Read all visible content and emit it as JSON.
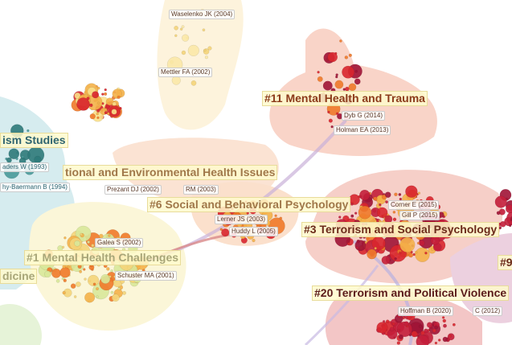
{
  "cluster_labels": {
    "c_studies": "ism Studies",
    "c_env": "tional and Environmental Health Issues",
    "c6": "#6 Social and Behavioral Psychology",
    "c11": "#11 Mental Health and Trauma",
    "c3": "#3 Terrorism and Social Psychology",
    "c1": "#1 Mental Health Challenges",
    "c_medicine": "dicine",
    "c20": "#20 Terrorism and Political Violence",
    "c9": "#9"
  },
  "reference_labels": {
    "waselenko": "Waselenko JK (2004)",
    "mettler": "Mettler FA (2002)",
    "dyb": "Dyb G (2014)",
    "holman": "Holman EA (2013)",
    "aders": "aders W (1993)",
    "baermann": "hy-Baermann B (1994)",
    "prezant": "Prezant DJ (2002)",
    "rm": "RM (2003)",
    "lerner": "Lerner JS (2003)",
    "huddy": "Huddy L (2005)",
    "galea": "Galea S (2002)",
    "schuster": "Schuster MA (2001)",
    "corner": "Corner E (2015)",
    "gill": "Gill P (2015)",
    "hoffman": "Hoffman B (2020)",
    "c2012": "C (2012)"
  }
}
